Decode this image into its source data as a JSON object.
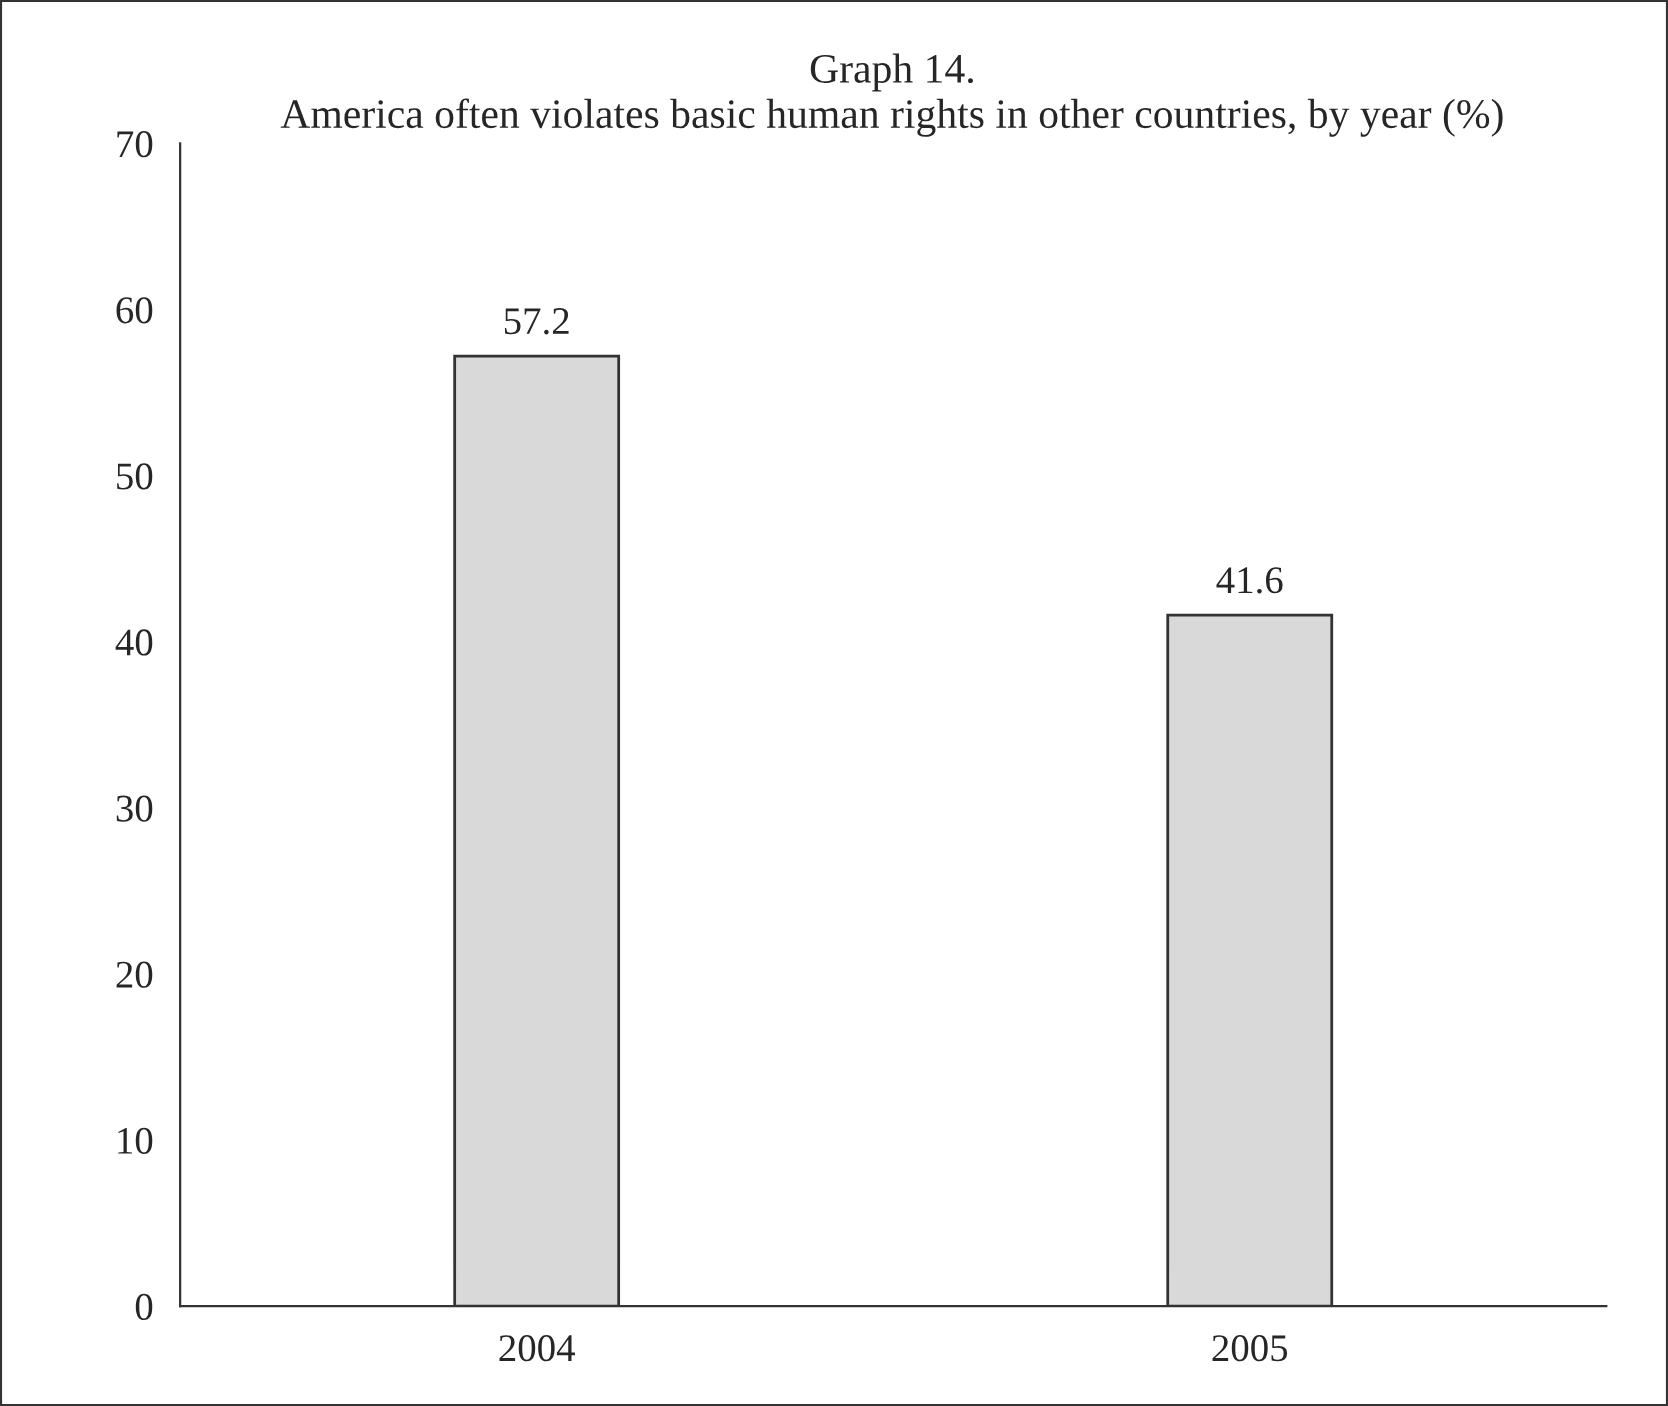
{
  "chart_data": {
    "type": "bar",
    "title": "Graph 14.",
    "subtitle": "America often violates basic human rights in other countries, by year (%)",
    "categories": [
      "2004",
      "2005"
    ],
    "values": [
      57.2,
      41.6
    ],
    "color": "#d9d9d9",
    "ylim": [
      0,
      70
    ],
    "yticks": [
      0,
      10,
      20,
      30,
      40,
      50,
      60,
      70
    ],
    "data_labels": true,
    "grid": false,
    "legend": false
  }
}
